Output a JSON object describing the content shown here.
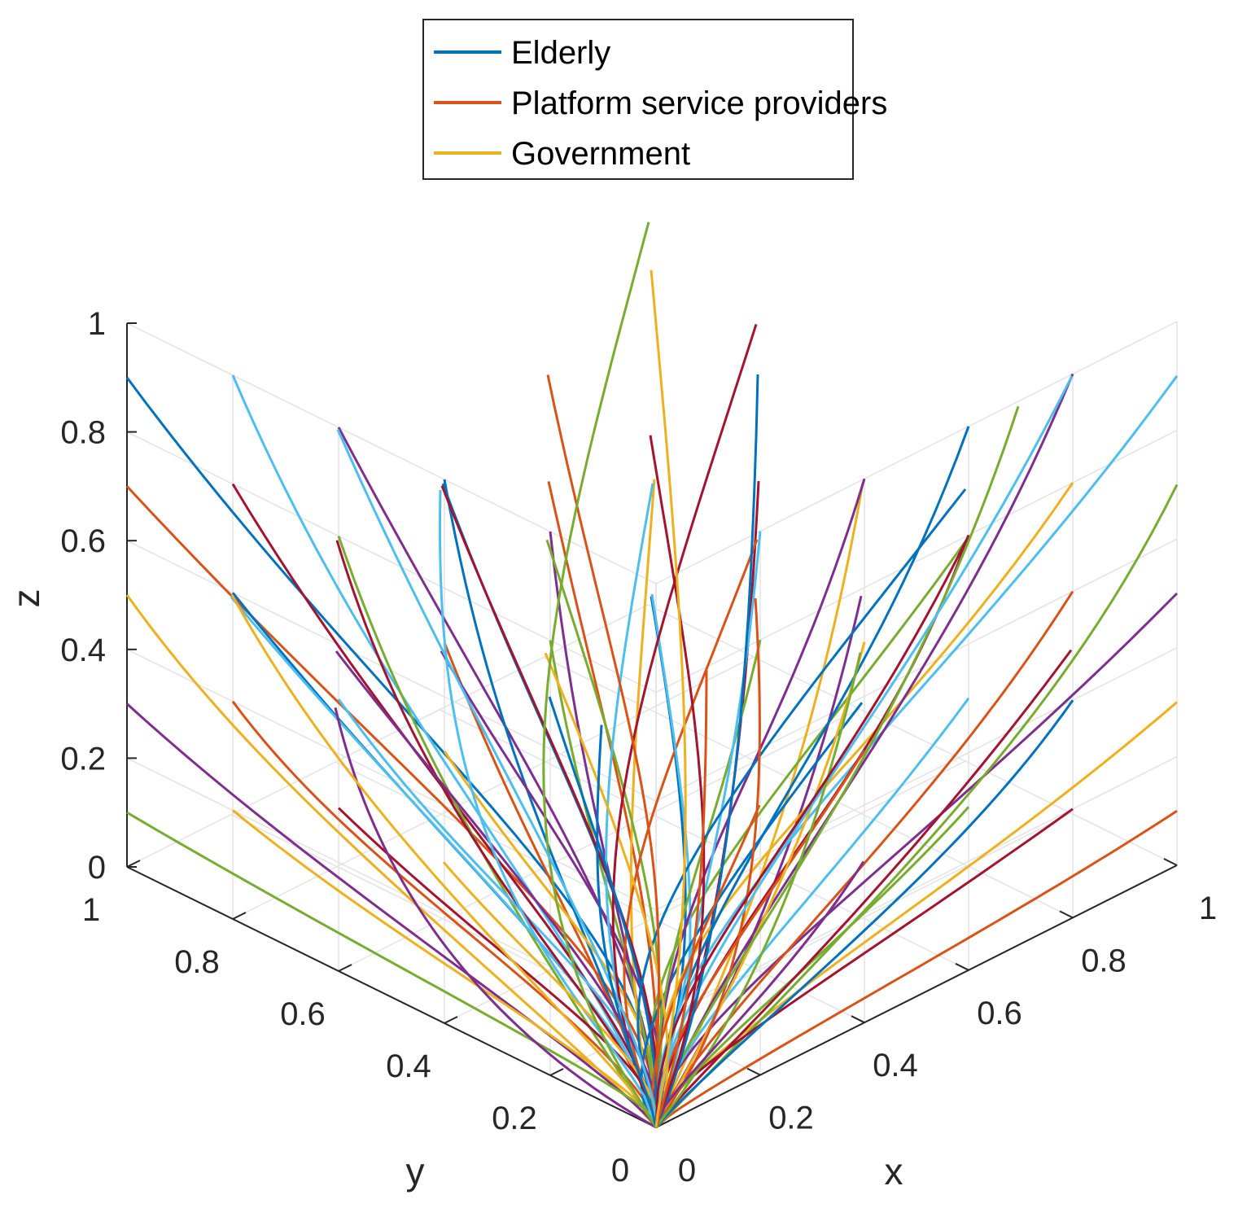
{
  "chart_data": {
    "type": "line",
    "title": "",
    "xlabel": "x",
    "ylabel": "y",
    "zlabel": "z",
    "xlim": [
      0,
      1
    ],
    "ylim": [
      0,
      1
    ],
    "zlim": [
      0,
      1
    ],
    "x_ticks": [
      "0",
      "0.2",
      "0.4",
      "0.6",
      "0.8",
      "1"
    ],
    "y_ticks": [
      "0",
      "0.2",
      "0.4",
      "0.6",
      "0.8",
      "1"
    ],
    "z_ticks": [
      "0",
      "0.2",
      "0.4",
      "0.6",
      "0.8",
      "1"
    ],
    "grid": true,
    "view": "3d",
    "legend_position": "top-center",
    "legend": [
      {
        "name": "Elderly",
        "color": "#0072BD"
      },
      {
        "name": "Platform service providers",
        "color": "#D95319"
      },
      {
        "name": "Government",
        "color": "#EDB120"
      }
    ],
    "series_colors": [
      "#0072BD",
      "#D95319",
      "#EDB120",
      "#7E2F8E",
      "#77AC30",
      "#4DBEEE",
      "#A2142F"
    ],
    "trajectories": {
      "description_of_endpoint": "all trajectories converge to (0, 0, 0)",
      "starts": [
        [
          0.0,
          1.0,
          0.9
        ],
        [
          0.0,
          1.0,
          0.7
        ],
        [
          0.0,
          1.0,
          0.5
        ],
        [
          0.0,
          1.0,
          0.3
        ],
        [
          0.0,
          1.0,
          0.1
        ],
        [
          0.0,
          0.8,
          1.0
        ],
        [
          0.0,
          0.8,
          0.8
        ],
        [
          0.0,
          0.8,
          0.6
        ],
        [
          0.0,
          0.8,
          0.4
        ],
        [
          0.0,
          0.8,
          0.2
        ],
        [
          0.0,
          0.6,
          1.0
        ],
        [
          0.0,
          0.6,
          0.8
        ],
        [
          0.0,
          0.6,
          0.5
        ],
        [
          0.0,
          0.6,
          0.3
        ],
        [
          0.0,
          0.4,
          1.0
        ],
        [
          0.0,
          0.4,
          0.7
        ],
        [
          0.0,
          0.4,
          0.5
        ],
        [
          0.0,
          0.2,
          1.0
        ],
        [
          0.0,
          0.2,
          0.8
        ],
        [
          0.2,
          1.0,
          0.4
        ],
        [
          0.2,
          0.8,
          0.6
        ],
        [
          0.2,
          0.6,
          0.8
        ],
        [
          0.2,
          0.4,
          0.9
        ],
        [
          0.2,
          0.2,
          1.0
        ],
        [
          0.4,
          0.8,
          0.3
        ],
        [
          0.4,
          0.6,
          0.6
        ],
        [
          0.4,
          0.4,
          0.8
        ],
        [
          0.4,
          0.2,
          0.9
        ],
        [
          0.6,
          0.6,
          0.4
        ],
        [
          0.6,
          0.4,
          0.6
        ],
        [
          0.6,
          0.2,
          0.8
        ],
        [
          0.8,
          0.4,
          0.4
        ],
        [
          0.8,
          0.2,
          0.6
        ],
        [
          0.5,
          0.5,
          0.5
        ],
        [
          0.3,
          0.7,
          0.7
        ],
        [
          0.7,
          0.3,
          0.3
        ],
        [
          1.0,
          0.0,
          0.1
        ],
        [
          1.0,
          0.0,
          0.3
        ],
        [
          1.0,
          0.0,
          0.5
        ],
        [
          1.0,
          0.0,
          0.7
        ],
        [
          1.0,
          0.0,
          0.9
        ],
        [
          0.8,
          0.0,
          0.2
        ],
        [
          0.8,
          0.0,
          0.4
        ],
        [
          0.8,
          0.0,
          0.6
        ],
        [
          0.8,
          0.0,
          0.8
        ],
        [
          0.8,
          0.0,
          1.0
        ],
        [
          0.6,
          0.0,
          0.3
        ],
        [
          0.6,
          0.0,
          0.5
        ],
        [
          0.6,
          0.0,
          0.8
        ],
        [
          0.6,
          0.0,
          1.0
        ],
        [
          0.4,
          0.0,
          0.5
        ],
        [
          0.4,
          0.0,
          0.7
        ],
        [
          0.4,
          0.0,
          1.0
        ],
        [
          0.2,
          0.0,
          0.8
        ],
        [
          0.2,
          0.0,
          1.0
        ],
        [
          1.0,
          0.2,
          0.3
        ],
        [
          1.0,
          0.4,
          0.5
        ],
        [
          0.8,
          0.6,
          0.3
        ],
        [
          0.6,
          0.8,
          0.2
        ],
        [
          0.4,
          1.0,
          0.1
        ],
        [
          1.0,
          0.3,
          0.7
        ],
        [
          0.9,
          0.1,
          0.9
        ],
        [
          0.7,
          0.5,
          0.9
        ],
        [
          0.5,
          0.3,
          1.0
        ],
        [
          0.3,
          0.5,
          1.0
        ],
        [
          0.1,
          0.9,
          0.5
        ],
        [
          0.3,
          0.9,
          0.3
        ],
        [
          0.9,
          0.5,
          0.2
        ],
        [
          0.5,
          0.9,
          0.5
        ],
        [
          0.7,
          0.7,
          0.6
        ],
        [
          0.1,
          0.3,
          0.6
        ],
        [
          0.3,
          0.1,
          0.4
        ],
        [
          0.1,
          0.5,
          0.2
        ],
        [
          0.5,
          0.1,
          0.2
        ],
        [
          0.9,
          0.9,
          0.8
        ],
        [
          0.1,
          0.7,
          0.9
        ],
        [
          0.7,
          0.1,
          0.7
        ],
        [
          0.2,
          0.3,
          0.5
        ],
        [
          0.3,
          0.2,
          0.6
        ],
        [
          0.6,
          0.6,
          1.0
        ]
      ]
    }
  }
}
